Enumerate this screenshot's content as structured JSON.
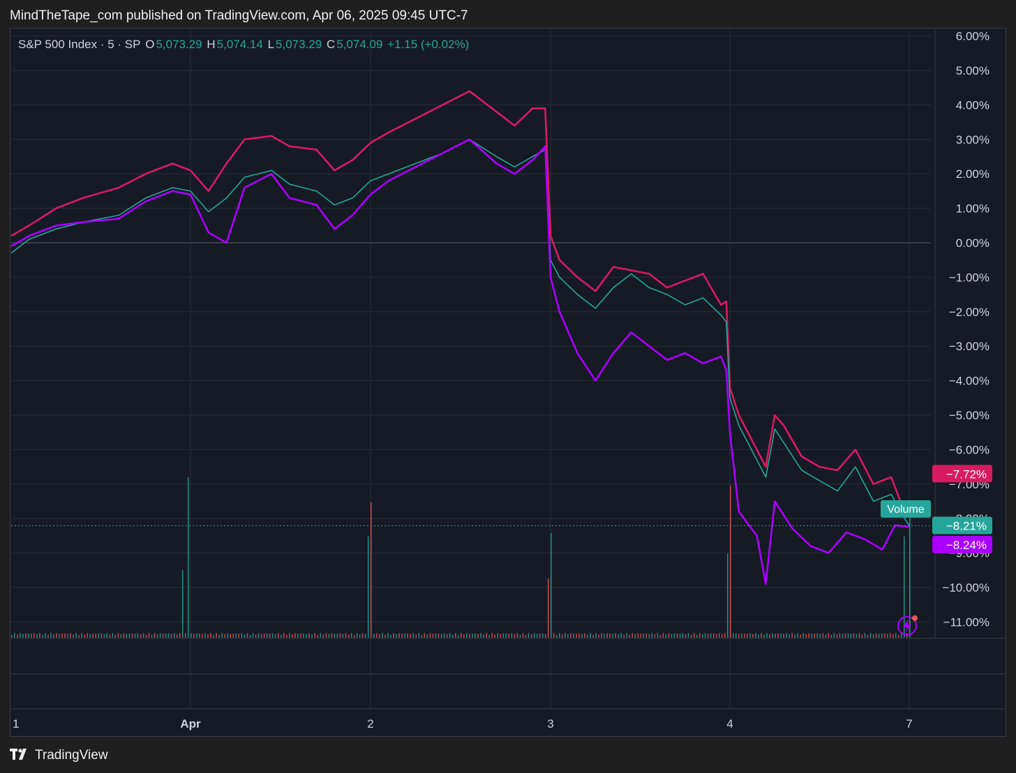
{
  "header": {
    "published": "MindTheTape_com published on TradingView.com, Apr 06, 2025 09:45 UTC-7"
  },
  "legend": {
    "symbol": "S&P 500 Index · 5 · SP",
    "open_label": "O",
    "open": "5,073.29",
    "high_label": "H",
    "high": "5,074.14",
    "low_label": "L",
    "low": "5,073.29",
    "close_label": "C",
    "close": "5,074.09",
    "change": "+1.15 (+0.02%)"
  },
  "footer": {
    "brand": "TradingView"
  },
  "volume_label": "Volume",
  "colors": {
    "up": "#26a69a",
    "down": "#ef5350",
    "magenta": "#d81b60",
    "purple": "#aa00ff",
    "grid": "#2a2e39",
    "text": "#d1d4dc"
  },
  "chart_data": {
    "type": "line",
    "y_unit": "%",
    "ylim": [
      -11.5,
      6.0
    ],
    "y_ticks": [
      "6.00%",
      "5.00%",
      "4.00%",
      "3.00%",
      "2.00%",
      "1.00%",
      "0.00%",
      "−1.00%",
      "−2.00%",
      "−3.00%",
      "−4.00%",
      "−5.00%",
      "−6.00%",
      "−7.00%",
      "−8.00%",
      "−9.00%",
      "−10.00%",
      "−11.00%"
    ],
    "y_tick_values": [
      6,
      5,
      4,
      3,
      2,
      1,
      0,
      -1,
      -2,
      -3,
      -4,
      -5,
      -6,
      -7,
      -8,
      -9,
      -10,
      -11
    ],
    "x_ticks": [
      {
        "label": "1",
        "x": 0.0
      },
      {
        "label": "Apr",
        "x": 1.0
      },
      {
        "label": "2",
        "x": 2.0
      },
      {
        "label": "3",
        "x": 3.0
      },
      {
        "label": "4",
        "x": 4.0
      },
      {
        "label": "7",
        "x": 5.0
      }
    ],
    "xlim": [
      0,
      5.5
    ],
    "series": [
      {
        "role": "magenta",
        "color": "#d81b60",
        "points": [
          [
            0,
            0.2
          ],
          [
            0.1,
            0.5
          ],
          [
            0.25,
            1.0
          ],
          [
            0.4,
            1.3
          ],
          [
            0.6,
            1.6
          ],
          [
            0.75,
            2.0
          ],
          [
            0.9,
            2.3
          ],
          [
            1.0,
            2.1
          ],
          [
            1.1,
            1.5
          ],
          [
            1.2,
            2.3
          ],
          [
            1.3,
            3.0
          ],
          [
            1.45,
            3.1
          ],
          [
            1.55,
            2.8
          ],
          [
            1.7,
            2.7
          ],
          [
            1.8,
            2.1
          ],
          [
            1.9,
            2.4
          ],
          [
            2.0,
            2.9
          ],
          [
            2.1,
            3.2
          ],
          [
            2.25,
            3.6
          ],
          [
            2.4,
            4.0
          ],
          [
            2.55,
            4.4
          ],
          [
            2.7,
            3.8
          ],
          [
            2.8,
            3.4
          ],
          [
            2.9,
            3.9
          ],
          [
            2.97,
            3.9
          ],
          [
            3.0,
            0.2
          ],
          [
            3.05,
            -0.5
          ],
          [
            3.15,
            -1.0
          ],
          [
            3.25,
            -1.4
          ],
          [
            3.35,
            -0.7
          ],
          [
            3.45,
            -0.8
          ],
          [
            3.55,
            -0.9
          ],
          [
            3.65,
            -1.3
          ],
          [
            3.75,
            -1.1
          ],
          [
            3.85,
            -0.9
          ],
          [
            3.95,
            -1.8
          ],
          [
            3.98,
            -1.7
          ],
          [
            4.0,
            -4.2
          ],
          [
            4.05,
            -5.0
          ],
          [
            4.1,
            -5.5
          ],
          [
            4.2,
            -6.5
          ],
          [
            4.25,
            -5.0
          ],
          [
            4.3,
            -5.3
          ],
          [
            4.4,
            -6.2
          ],
          [
            4.5,
            -6.5
          ],
          [
            4.6,
            -6.6
          ],
          [
            4.7,
            -6.0
          ],
          [
            4.8,
            -7.0
          ],
          [
            4.9,
            -6.8
          ],
          [
            4.95,
            -7.5
          ],
          [
            5.0,
            -7.72
          ]
        ],
        "end_label": "−7.72%"
      },
      {
        "role": "teal",
        "color": "#26a69a",
        "points": [
          [
            0,
            -0.3
          ],
          [
            0.1,
            0.1
          ],
          [
            0.25,
            0.4
          ],
          [
            0.4,
            0.6
          ],
          [
            0.6,
            0.8
          ],
          [
            0.75,
            1.3
          ],
          [
            0.9,
            1.6
          ],
          [
            1.0,
            1.5
          ],
          [
            1.1,
            0.9
          ],
          [
            1.2,
            1.3
          ],
          [
            1.3,
            1.9
          ],
          [
            1.45,
            2.1
          ],
          [
            1.55,
            1.7
          ],
          [
            1.7,
            1.5
          ],
          [
            1.8,
            1.1
          ],
          [
            1.9,
            1.3
          ],
          [
            2.0,
            1.8
          ],
          [
            2.1,
            2.0
          ],
          [
            2.25,
            2.3
          ],
          [
            2.4,
            2.6
          ],
          [
            2.55,
            3.0
          ],
          [
            2.7,
            2.5
          ],
          [
            2.8,
            2.2
          ],
          [
            2.9,
            2.5
          ],
          [
            2.97,
            2.7
          ],
          [
            3.0,
            -0.5
          ],
          [
            3.05,
            -1.0
          ],
          [
            3.15,
            -1.5
          ],
          [
            3.25,
            -1.9
          ],
          [
            3.35,
            -1.3
          ],
          [
            3.45,
            -0.9
          ],
          [
            3.55,
            -1.3
          ],
          [
            3.65,
            -1.5
          ],
          [
            3.75,
            -1.8
          ],
          [
            3.85,
            -1.6
          ],
          [
            3.95,
            -2.1
          ],
          [
            3.98,
            -2.3
          ],
          [
            4.0,
            -4.5
          ],
          [
            4.05,
            -5.3
          ],
          [
            4.1,
            -5.8
          ],
          [
            4.2,
            -6.8
          ],
          [
            4.25,
            -5.4
          ],
          [
            4.3,
            -5.8
          ],
          [
            4.4,
            -6.6
          ],
          [
            4.5,
            -6.9
          ],
          [
            4.6,
            -7.2
          ],
          [
            4.7,
            -6.5
          ],
          [
            4.8,
            -7.5
          ],
          [
            4.9,
            -7.3
          ],
          [
            4.95,
            -7.8
          ],
          [
            5.0,
            -8.21
          ]
        ],
        "end_label": "−8.21%"
      },
      {
        "role": "purple",
        "color": "#aa00ff",
        "points": [
          [
            0,
            -0.1
          ],
          [
            0.1,
            0.2
          ],
          [
            0.25,
            0.5
          ],
          [
            0.4,
            0.6
          ],
          [
            0.6,
            0.7
          ],
          [
            0.75,
            1.2
          ],
          [
            0.9,
            1.5
          ],
          [
            1.0,
            1.4
          ],
          [
            1.1,
            0.3
          ],
          [
            1.2,
            0.0
          ],
          [
            1.3,
            1.6
          ],
          [
            1.45,
            2.0
          ],
          [
            1.55,
            1.3
          ],
          [
            1.7,
            1.1
          ],
          [
            1.8,
            0.4
          ],
          [
            1.9,
            0.8
          ],
          [
            2.0,
            1.4
          ],
          [
            2.1,
            1.8
          ],
          [
            2.25,
            2.2
          ],
          [
            2.4,
            2.6
          ],
          [
            2.55,
            3.0
          ],
          [
            2.7,
            2.3
          ],
          [
            2.8,
            2.0
          ],
          [
            2.9,
            2.4
          ],
          [
            2.97,
            2.8
          ],
          [
            3.0,
            -1.0
          ],
          [
            3.05,
            -2.0
          ],
          [
            3.15,
            -3.2
          ],
          [
            3.25,
            -4.0
          ],
          [
            3.35,
            -3.2
          ],
          [
            3.45,
            -2.6
          ],
          [
            3.55,
            -3.0
          ],
          [
            3.65,
            -3.4
          ],
          [
            3.75,
            -3.2
          ],
          [
            3.85,
            -3.5
          ],
          [
            3.95,
            -3.3
          ],
          [
            3.98,
            -3.7
          ],
          [
            4.0,
            -5.5
          ],
          [
            4.05,
            -7.8
          ],
          [
            4.15,
            -8.5
          ],
          [
            4.2,
            -9.9
          ],
          [
            4.25,
            -7.5
          ],
          [
            4.35,
            -8.3
          ],
          [
            4.45,
            -8.8
          ],
          [
            4.55,
            -9.0
          ],
          [
            4.65,
            -8.4
          ],
          [
            4.75,
            -8.6
          ],
          [
            4.85,
            -8.9
          ],
          [
            4.92,
            -8.2
          ],
          [
            5.0,
            -8.24
          ]
        ],
        "end_label": "−8.24%"
      }
    ],
    "volume": {
      "baseline": 0.3,
      "spikes": [
        [
          0.0,
          0.15
        ],
        [
          0.96,
          0.4
        ],
        [
          0.98,
          0.95
        ],
        [
          1.99,
          0.6
        ],
        [
          2.0,
          0.8
        ],
        [
          2.99,
          0.35
        ],
        [
          3.0,
          0.62
        ],
        [
          3.99,
          0.5
        ],
        [
          4.0,
          0.9
        ],
        [
          4.02,
          0.3
        ],
        [
          4.2,
          0.25
        ],
        [
          4.95,
          0.25
        ],
        [
          4.97,
          0.6
        ],
        [
          5.0,
          0.72
        ]
      ]
    }
  }
}
